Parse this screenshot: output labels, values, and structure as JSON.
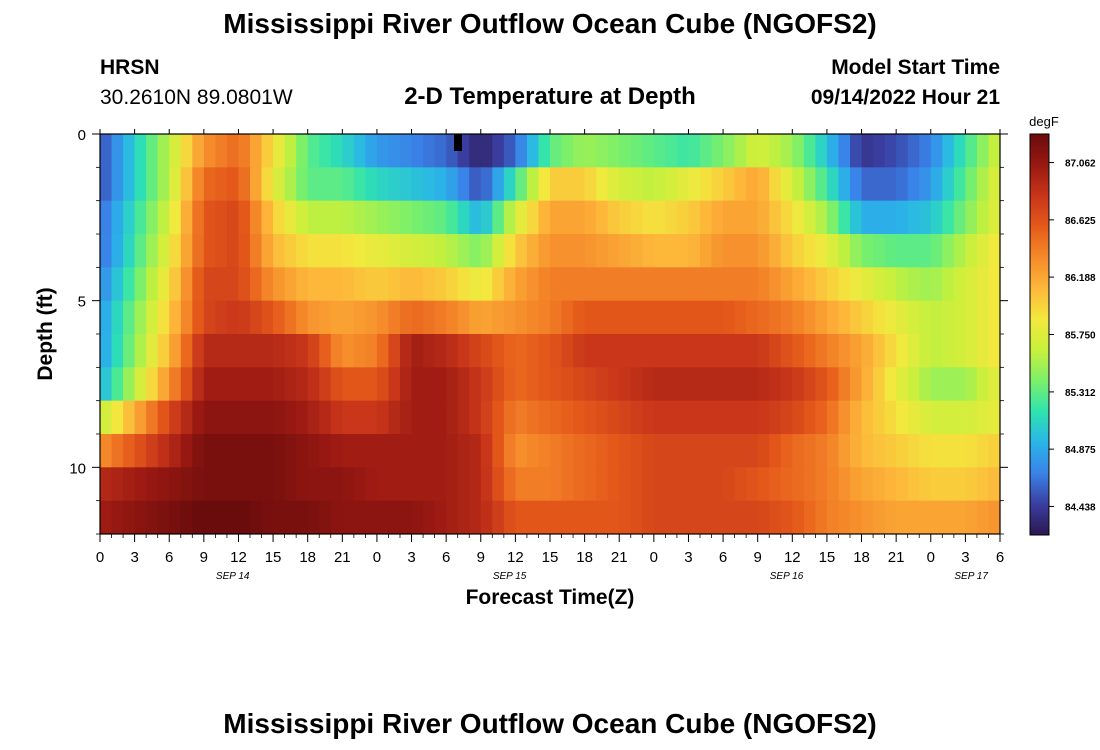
{
  "header": {
    "title": "Mississippi River Outflow Ocean Cube (NGOFS2)",
    "station_code": "HRSN",
    "station_coords": "30.2610N  89.0801W",
    "subtitle": "2-D Temperature at Depth",
    "model_label": "Model Start Time",
    "model_time": "09/14/2022 Hour 21"
  },
  "footer": {
    "title": "Mississippi River Outflow Ocean Cube (NGOFS2)"
  },
  "chart_data": {
    "type": "heatmap",
    "title": "2-D Temperature at Depth",
    "xlabel": "Forecast Time(Z)",
    "ylabel": "Depth (ft)",
    "x_range_hours": [
      0,
      78
    ],
    "y_range_ft": [
      0,
      12
    ],
    "x_tick_labels": [
      "0",
      "3",
      "6",
      "9",
      "12",
      "15",
      "18",
      "21",
      "0",
      "3",
      "6",
      "9",
      "12",
      "15",
      "18",
      "21",
      "0",
      "3",
      "6",
      "9",
      "12",
      "15",
      "18",
      "21",
      "0",
      "3",
      "6"
    ],
    "y_tick_labels": [
      "0",
      "5",
      "10"
    ],
    "y_tick_values": [
      0,
      5,
      10
    ],
    "date_labels": [
      {
        "label": "SEP 14",
        "hour": 11.5
      },
      {
        "label": "SEP 15",
        "hour": 35.5
      },
      {
        "label": "SEP 16",
        "hour": 59.5
      },
      {
        "label": "SEP 17",
        "hour": 75.5
      }
    ],
    "colorbar": {
      "unit": "degF",
      "range": [
        84.22,
        87.28
      ],
      "ticks": [
        "87.062",
        "86.625",
        "86.188",
        "85.750",
        "85.312",
        "84.875",
        "84.438"
      ],
      "colors": [
        "#2b1750",
        "#3a3ea0",
        "#3a82e8",
        "#2ab5e8",
        "#2ee3b0",
        "#7cf06a",
        "#c8f03c",
        "#f3e83e",
        "#fdb73a",
        "#f58a2a",
        "#e55a1a",
        "#c8351a",
        "#981812",
        "#6a0c0c"
      ]
    },
    "depth_levels_ft": [
      0.5,
      1.5,
      2.5,
      3.5,
      4.5,
      5.5,
      6.5,
      7.5,
      8.5,
      9.5,
      10.5,
      11.5
    ],
    "hours": [
      0,
      6,
      9,
      12,
      15,
      18,
      21,
      24,
      27,
      30,
      33,
      36,
      39,
      42,
      45,
      48,
      51,
      54,
      57,
      60,
      63,
      66,
      69,
      72,
      75,
      78
    ],
    "temperature_degF": [
      [
        84.5,
        85.6,
        86.3,
        86.5,
        85.9,
        85.3,
        85.1,
        84.8,
        84.7,
        84.6,
        84.3,
        84.6,
        85.3,
        85.5,
        85.4,
        85.3,
        85.2,
        85.4,
        85.7,
        85.5,
        85.0,
        84.4,
        84.5,
        84.7,
        85.2,
        85.7
      ],
      [
        84.5,
        85.6,
        86.5,
        86.6,
        85.8,
        85.3,
        85.3,
        85.1,
        85.0,
        84.9,
        84.5,
        85.2,
        86.0,
        86.0,
        85.7,
        85.6,
        85.8,
        86.0,
        86.2,
        85.7,
        85.2,
        84.6,
        84.6,
        84.8,
        85.3,
        85.8
      ],
      [
        84.6,
        85.7,
        86.6,
        86.7,
        86.0,
        85.6,
        85.6,
        85.5,
        85.4,
        85.3,
        84.9,
        85.7,
        86.2,
        86.2,
        86.0,
        85.9,
        86.0,
        86.2,
        86.2,
        85.9,
        85.5,
        84.9,
        84.9,
        85.0,
        85.4,
        85.8
      ],
      [
        84.6,
        85.8,
        86.6,
        86.7,
        86.1,
        85.9,
        85.9,
        85.8,
        85.7,
        85.6,
        85.4,
        86.0,
        86.3,
        86.3,
        86.2,
        86.1,
        86.1,
        86.3,
        86.3,
        86.0,
        85.8,
        85.4,
        85.3,
        85.3,
        85.6,
        85.9
      ],
      [
        84.7,
        85.9,
        86.7,
        86.7,
        86.3,
        86.1,
        86.1,
        86.0,
        86.1,
        86.0,
        85.8,
        86.2,
        86.4,
        86.4,
        86.4,
        86.4,
        86.4,
        86.4,
        86.4,
        86.2,
        86.0,
        85.8,
        85.6,
        85.5,
        85.7,
        85.9
      ],
      [
        84.8,
        86.0,
        86.7,
        86.8,
        86.6,
        86.3,
        86.2,
        86.3,
        86.5,
        86.4,
        86.2,
        86.3,
        86.4,
        86.6,
        86.6,
        86.6,
        86.6,
        86.6,
        86.5,
        86.4,
        86.2,
        86.0,
        85.8,
        85.6,
        85.7,
        85.9
      ],
      [
        84.8,
        86.1,
        86.9,
        86.9,
        86.9,
        86.8,
        86.3,
        86.4,
        87.0,
        86.9,
        86.7,
        86.5,
        86.6,
        86.8,
        86.8,
        86.8,
        86.8,
        86.8,
        86.8,
        86.6,
        86.4,
        86.2,
        85.9,
        85.6,
        85.7,
        85.9
      ],
      [
        84.9,
        86.3,
        87.0,
        87.0,
        87.0,
        86.9,
        86.6,
        86.6,
        87.0,
        87.0,
        86.8,
        86.5,
        86.6,
        86.7,
        86.8,
        86.9,
        86.9,
        86.9,
        86.9,
        86.8,
        86.6,
        86.2,
        85.8,
        85.5,
        85.5,
        85.8
      ],
      [
        85.6,
        86.7,
        87.1,
        87.1,
        87.1,
        87.0,
        86.8,
        86.8,
        87.0,
        87.0,
        86.8,
        86.4,
        86.5,
        86.6,
        86.7,
        86.8,
        86.8,
        86.8,
        86.8,
        86.7,
        86.5,
        86.1,
        85.9,
        85.7,
        85.7,
        85.8
      ],
      [
        86.3,
        86.9,
        87.2,
        87.2,
        87.2,
        87.1,
        87.0,
        87.0,
        87.0,
        87.0,
        86.9,
        86.3,
        86.4,
        86.5,
        86.6,
        86.7,
        86.7,
        86.7,
        86.7,
        86.5,
        86.4,
        86.1,
        86.0,
        85.9,
        85.9,
        86.0
      ],
      [
        86.9,
        87.1,
        87.2,
        87.2,
        87.2,
        87.1,
        87.1,
        87.0,
        87.0,
        87.0,
        86.9,
        86.4,
        86.4,
        86.5,
        86.6,
        86.7,
        86.7,
        86.7,
        86.6,
        86.5,
        86.4,
        86.2,
        86.1,
        86.0,
        86.0,
        86.1
      ],
      [
        87.0,
        87.2,
        87.3,
        87.3,
        87.2,
        87.2,
        87.1,
        87.1,
        87.1,
        87.0,
        86.9,
        86.6,
        86.6,
        86.6,
        86.6,
        86.7,
        86.7,
        86.7,
        86.7,
        86.6,
        86.4,
        86.3,
        86.2,
        86.2,
        86.2,
        86.3
      ]
    ]
  }
}
